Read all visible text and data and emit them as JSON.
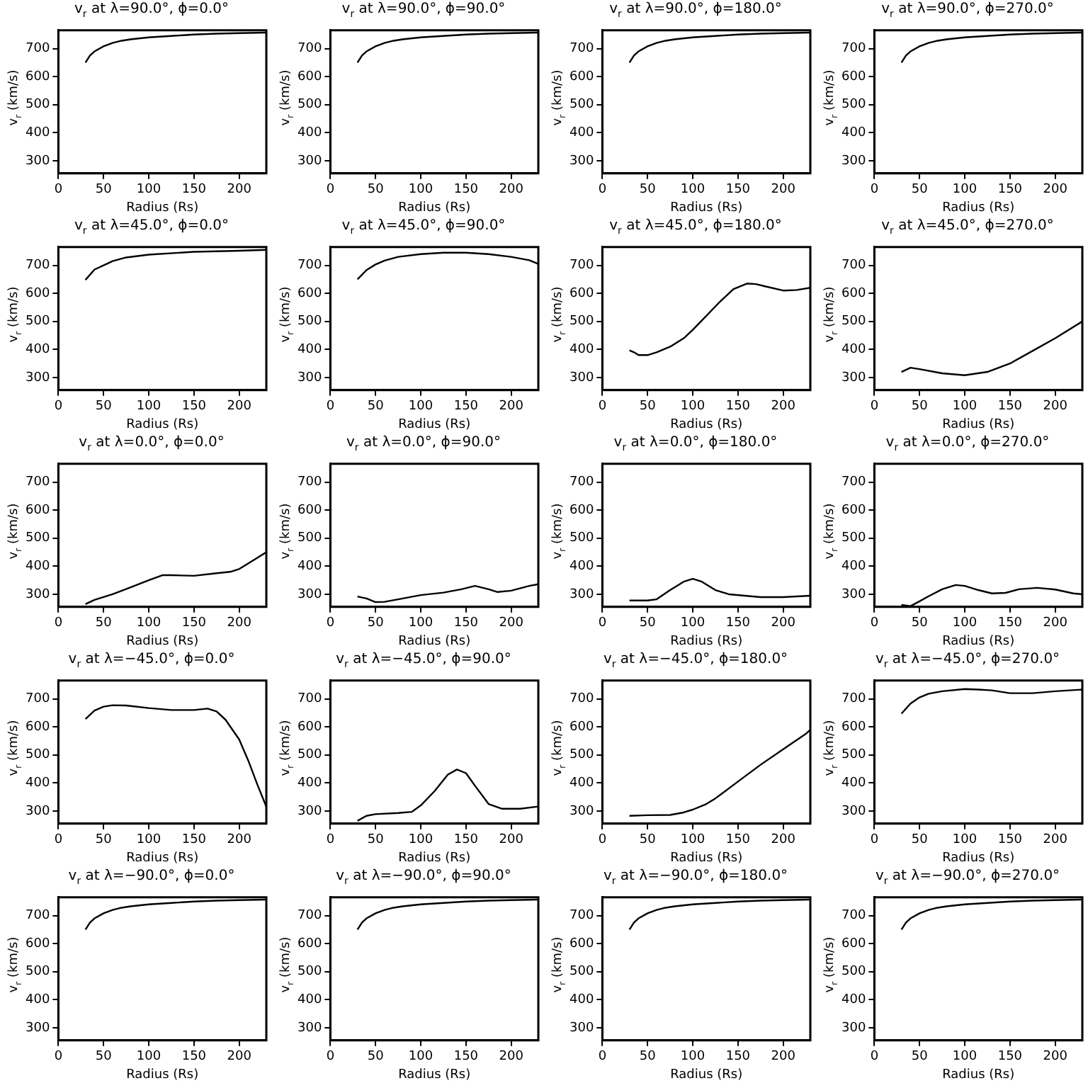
{
  "chart_data": [
    {
      "type": "line",
      "title": "v$_{r}$ at λ=90.0°, ϕ=0.0°",
      "xlabel": "Radius (Rs)",
      "ylabel": "v$_{r}$ (km/s)",
      "x": [
        30,
        35,
        40,
        50,
        60,
        70,
        80,
        100,
        125,
        150,
        175,
        200,
        230
      ],
      "values": [
        650,
        675,
        690,
        708,
        720,
        728,
        733,
        740,
        745,
        750,
        753,
        755,
        757
      ],
      "color": "#000000",
      "xlim": [
        0,
        230
      ],
      "ylim": [
        255,
        765
      ],
      "xticks": [
        0,
        50,
        100,
        150,
        200
      ],
      "yticks": [
        300,
        400,
        500,
        600,
        700
      ],
      "marker": "none",
      "line_style": "solid"
    },
    {
      "type": "line",
      "title": "v$_{r}$ at λ=90.0°, ϕ=90.0°",
      "xlabel": "Radius (Rs)",
      "ylabel": "v$_{r}$ (km/s)",
      "x": [
        30,
        35,
        40,
        50,
        60,
        70,
        80,
        100,
        125,
        150,
        175,
        200,
        230
      ],
      "values": [
        650,
        675,
        690,
        708,
        720,
        728,
        733,
        740,
        745,
        750,
        753,
        755,
        757
      ],
      "color": "#000000",
      "xlim": [
        0,
        230
      ],
      "ylim": [
        255,
        765
      ],
      "xticks": [
        0,
        50,
        100,
        150,
        200
      ],
      "yticks": [
        300,
        400,
        500,
        600,
        700
      ],
      "marker": "none",
      "line_style": "solid"
    },
    {
      "type": "line",
      "title": "v$_{r}$ at λ=90.0°, ϕ=180.0°",
      "xlabel": "Radius (Rs)",
      "ylabel": "v$_{r}$ (km/s)",
      "x": [
        30,
        35,
        40,
        50,
        60,
        70,
        80,
        100,
        125,
        150,
        175,
        200,
        230
      ],
      "values": [
        650,
        675,
        690,
        708,
        720,
        728,
        733,
        740,
        745,
        750,
        753,
        755,
        757
      ],
      "color": "#000000",
      "xlim": [
        0,
        230
      ],
      "ylim": [
        255,
        765
      ],
      "xticks": [
        0,
        50,
        100,
        150,
        200
      ],
      "yticks": [
        300,
        400,
        500,
        600,
        700
      ],
      "marker": "none",
      "line_style": "solid"
    },
    {
      "type": "line",
      "title": "v$_{r}$ at λ=90.0°, ϕ=270.0°",
      "xlabel": "Radius (Rs)",
      "ylabel": "v$_{r}$ (km/s)",
      "x": [
        30,
        35,
        40,
        50,
        60,
        70,
        80,
        100,
        125,
        150,
        175,
        200,
        230
      ],
      "values": [
        650,
        675,
        690,
        708,
        720,
        728,
        733,
        740,
        745,
        750,
        753,
        755,
        757
      ],
      "color": "#000000",
      "xlim": [
        0,
        230
      ],
      "ylim": [
        255,
        765
      ],
      "xticks": [
        0,
        50,
        100,
        150,
        200
      ],
      "yticks": [
        300,
        400,
        500,
        600,
        700
      ],
      "marker": "none",
      "line_style": "solid"
    },
    {
      "type": "line",
      "title": "v$_{r}$ at λ=45.0°, ϕ=0.0°",
      "xlabel": "Radius (Rs)",
      "ylabel": "v$_{r}$ (km/s)",
      "x": [
        30,
        40,
        50,
        60,
        75,
        100,
        150,
        200,
        230
      ],
      "values": [
        648,
        685,
        700,
        715,
        728,
        738,
        748,
        752,
        755
      ],
      "color": "#000000",
      "xlim": [
        0,
        230
      ],
      "ylim": [
        255,
        765
      ],
      "xticks": [
        0,
        50,
        100,
        150,
        200
      ],
      "yticks": [
        300,
        400,
        500,
        600,
        700
      ],
      "marker": "none",
      "line_style": "solid"
    },
    {
      "type": "line",
      "title": "v$_{r}$ at λ=45.0°, ϕ=90.0°",
      "xlabel": "Radius (Rs)",
      "ylabel": "v$_{r}$ (km/s)",
      "x": [
        30,
        40,
        50,
        60,
        75,
        100,
        125,
        150,
        175,
        200,
        220,
        230
      ],
      "values": [
        650,
        683,
        703,
        717,
        730,
        740,
        745,
        745,
        740,
        730,
        718,
        705
      ],
      "color": "#000000",
      "xlim": [
        0,
        230
      ],
      "ylim": [
        255,
        765
      ],
      "xticks": [
        0,
        50,
        100,
        150,
        200
      ],
      "yticks": [
        300,
        400,
        500,
        600,
        700
      ],
      "marker": "none",
      "line_style": "solid"
    },
    {
      "type": "line",
      "title": "v$_{r}$ at λ=45.0°, ϕ=180.0°",
      "xlabel": "Radius (Rs)",
      "ylabel": "v$_{r}$ (km/s)",
      "x": [
        30,
        35,
        40,
        50,
        60,
        75,
        90,
        100,
        115,
        130,
        145,
        160,
        170,
        180,
        200,
        215,
        230
      ],
      "values": [
        397,
        390,
        380,
        380,
        390,
        410,
        440,
        470,
        520,
        570,
        615,
        635,
        633,
        625,
        610,
        612,
        620
      ],
      "color": "#000000",
      "xlim": [
        0,
        230
      ],
      "ylim": [
        255,
        765
      ],
      "xticks": [
        0,
        50,
        100,
        150,
        200
      ],
      "yticks": [
        300,
        400,
        500,
        600,
        700
      ],
      "marker": "none",
      "line_style": "solid"
    },
    {
      "type": "line",
      "title": "v$_{r}$ at λ=45.0°, ϕ=270.0°",
      "xlabel": "Radius (Rs)",
      "ylabel": "v$_{r}$ (km/s)",
      "x": [
        30,
        40,
        50,
        75,
        100,
        125,
        150,
        175,
        200,
        230
      ],
      "values": [
        320,
        335,
        330,
        315,
        308,
        320,
        350,
        395,
        440,
        500
      ],
      "color": "#000000",
      "xlim": [
        0,
        230
      ],
      "ylim": [
        255,
        765
      ],
      "xticks": [
        0,
        50,
        100,
        150,
        200
      ],
      "yticks": [
        300,
        400,
        500,
        600,
        700
      ],
      "marker": "none",
      "line_style": "solid"
    },
    {
      "type": "line",
      "title": "v$_{r}$ at λ=0.0°, ϕ=0.0°",
      "xlabel": "Radius (Rs)",
      "ylabel": "v$_{r}$ (km/s)",
      "x": [
        30,
        40,
        60,
        80,
        100,
        115,
        125,
        150,
        175,
        190,
        200,
        215,
        230
      ],
      "values": [
        265,
        280,
        300,
        325,
        350,
        368,
        368,
        366,
        375,
        380,
        390,
        420,
        450
      ],
      "color": "#000000",
      "xlim": [
        0,
        230
      ],
      "ylim": [
        255,
        765
      ],
      "xticks": [
        0,
        50,
        100,
        150,
        200
      ],
      "yticks": [
        300,
        400,
        500,
        600,
        700
      ],
      "marker": "none",
      "line_style": "solid"
    },
    {
      "type": "line",
      "title": "v$_{r}$ at λ=0.0°, ϕ=90.0°",
      "xlabel": "Radius (Rs)",
      "ylabel": "v$_{r}$ (km/s)",
      "x": [
        30,
        40,
        50,
        60,
        75,
        100,
        125,
        145,
        160,
        175,
        185,
        200,
        220,
        230
      ],
      "values": [
        292,
        285,
        272,
        273,
        282,
        297,
        306,
        318,
        330,
        318,
        308,
        313,
        330,
        336
      ],
      "color": "#000000",
      "xlim": [
        0,
        230
      ],
      "ylim": [
        255,
        765
      ],
      "xticks": [
        0,
        50,
        100,
        150,
        200
      ],
      "yticks": [
        300,
        400,
        500,
        600,
        700
      ],
      "marker": "none",
      "line_style": "solid"
    },
    {
      "type": "line",
      "title": "v$_{r}$ at λ=0.0°, ϕ=180.0°",
      "xlabel": "Radius (Rs)",
      "ylabel": "v$_{r}$ (km/s)",
      "x": [
        30,
        50,
        60,
        75,
        90,
        100,
        110,
        125,
        140,
        175,
        200,
        230
      ],
      "values": [
        278,
        278,
        282,
        315,
        345,
        355,
        345,
        315,
        300,
        290,
        290,
        295
      ],
      "color": "#000000",
      "xlim": [
        0,
        230
      ],
      "ylim": [
        255,
        765
      ],
      "xticks": [
        0,
        50,
        100,
        150,
        200
      ],
      "yticks": [
        300,
        400,
        500,
        600,
        700
      ],
      "marker": "none",
      "line_style": "solid"
    },
    {
      "type": "line",
      "title": "v$_{r}$ at λ=0.0°, ϕ=270.0°",
      "xlabel": "Radius (Rs)",
      "ylabel": "v$_{r}$ (km/s)",
      "x": [
        30,
        40,
        50,
        60,
        75,
        90,
        100,
        115,
        130,
        145,
        160,
        180,
        200,
        220,
        230
      ],
      "values": [
        262,
        258,
        275,
        293,
        318,
        333,
        330,
        315,
        303,
        305,
        318,
        323,
        317,
        303,
        300
      ],
      "color": "#000000",
      "xlim": [
        0,
        230
      ],
      "ylim": [
        255,
        765
      ],
      "xticks": [
        0,
        50,
        100,
        150,
        200
      ],
      "yticks": [
        300,
        400,
        500,
        600,
        700
      ],
      "marker": "none",
      "line_style": "solid"
    },
    {
      "type": "line",
      "title": "v$_{r}$ at λ=−45.0°, ϕ=0.0°",
      "xlabel": "Radius (Rs)",
      "ylabel": "v$_{r}$ (km/s)",
      "x": [
        30,
        40,
        50,
        60,
        75,
        100,
        125,
        150,
        165,
        175,
        185,
        200,
        210,
        220,
        230
      ],
      "values": [
        628,
        658,
        672,
        677,
        676,
        667,
        660,
        660,
        665,
        655,
        625,
        555,
        480,
        395,
        315
      ],
      "color": "#000000",
      "xlim": [
        0,
        230
      ],
      "ylim": [
        255,
        765
      ],
      "xticks": [
        0,
        50,
        100,
        150,
        200
      ],
      "yticks": [
        300,
        400,
        500,
        600,
        700
      ],
      "marker": "none",
      "line_style": "solid"
    },
    {
      "type": "line",
      "title": "v$_{r}$ at λ=−45.0°, ϕ=90.0°",
      "xlabel": "Radius (Rs)",
      "ylabel": "v$_{r}$ (km/s)",
      "x": [
        30,
        40,
        50,
        75,
        90,
        100,
        115,
        130,
        140,
        150,
        160,
        175,
        190,
        210,
        230
      ],
      "values": [
        265,
        283,
        289,
        293,
        297,
        320,
        370,
        430,
        448,
        435,
        390,
        325,
        308,
        308,
        316
      ],
      "color": "#000000",
      "xlim": [
        0,
        230
      ],
      "ylim": [
        255,
        765
      ],
      "xticks": [
        0,
        50,
        100,
        150,
        200
      ],
      "yticks": [
        300,
        400,
        500,
        600,
        700
      ],
      "marker": "none",
      "line_style": "solid"
    },
    {
      "type": "line",
      "title": "v$_{r}$ at λ=−45.0°, ϕ=180.0°",
      "xlabel": "Radius (Rs)",
      "ylabel": "v$_{r}$ (km/s)",
      "x": [
        30,
        50,
        75,
        90,
        100,
        115,
        125,
        150,
        175,
        200,
        225,
        230
      ],
      "values": [
        283,
        285,
        286,
        295,
        305,
        325,
        345,
        405,
        465,
        520,
        575,
        590
      ],
      "color": "#000000",
      "xlim": [
        0,
        230
      ],
      "ylim": [
        255,
        765
      ],
      "xticks": [
        0,
        50,
        100,
        150,
        200
      ],
      "yticks": [
        300,
        400,
        500,
        600,
        700
      ],
      "marker": "none",
      "line_style": "solid"
    },
    {
      "type": "line",
      "title": "v$_{r}$ at λ=−45.0°, ϕ=270.0°",
      "xlabel": "Radius (Rs)",
      "ylabel": "v$_{r}$ (km/s)",
      "x": [
        30,
        40,
        50,
        60,
        75,
        100,
        115,
        130,
        150,
        175,
        200,
        230
      ],
      "values": [
        647,
        683,
        705,
        718,
        727,
        735,
        733,
        730,
        720,
        720,
        727,
        733
      ],
      "color": "#000000",
      "xlim": [
        0,
        230
      ],
      "ylim": [
        255,
        765
      ],
      "xticks": [
        0,
        50,
        100,
        150,
        200
      ],
      "yticks": [
        300,
        400,
        500,
        600,
        700
      ],
      "marker": "none",
      "line_style": "solid"
    },
    {
      "type": "line",
      "title": "v$_{r}$ at λ=−90.0°, ϕ=0.0°",
      "xlabel": "Radius (Rs)",
      "ylabel": "v$_{r}$ (km/s)",
      "x": [
        30,
        35,
        40,
        50,
        60,
        70,
        80,
        100,
        125,
        150,
        175,
        200,
        230
      ],
      "values": [
        650,
        675,
        690,
        708,
        720,
        728,
        733,
        740,
        745,
        750,
        753,
        755,
        757
      ],
      "color": "#000000",
      "xlim": [
        0,
        230
      ],
      "ylim": [
        255,
        765
      ],
      "xticks": [
        0,
        50,
        100,
        150,
        200
      ],
      "yticks": [
        300,
        400,
        500,
        600,
        700
      ],
      "marker": "none",
      "line_style": "solid"
    },
    {
      "type": "line",
      "title": "v$_{r}$ at λ=−90.0°, ϕ=90.0°",
      "xlabel": "Radius (Rs)",
      "ylabel": "v$_{r}$ (km/s)",
      "x": [
        30,
        35,
        40,
        50,
        60,
        70,
        80,
        100,
        125,
        150,
        175,
        200,
        230
      ],
      "values": [
        650,
        675,
        690,
        708,
        720,
        728,
        733,
        740,
        745,
        750,
        753,
        755,
        757
      ],
      "color": "#000000",
      "xlim": [
        0,
        230
      ],
      "ylim": [
        255,
        765
      ],
      "xticks": [
        0,
        50,
        100,
        150,
        200
      ],
      "yticks": [
        300,
        400,
        500,
        600,
        700
      ],
      "marker": "none",
      "line_style": "solid"
    },
    {
      "type": "line",
      "title": "v$_{r}$ at λ=−90.0°, ϕ=180.0°",
      "xlabel": "Radius (Rs)",
      "ylabel": "v$_{r}$ (km/s)",
      "x": [
        30,
        35,
        40,
        50,
        60,
        70,
        80,
        100,
        125,
        150,
        175,
        200,
        230
      ],
      "values": [
        650,
        675,
        690,
        708,
        720,
        728,
        733,
        740,
        745,
        750,
        753,
        755,
        757
      ],
      "color": "#000000",
      "xlim": [
        0,
        230
      ],
      "ylim": [
        255,
        765
      ],
      "xticks": [
        0,
        50,
        100,
        150,
        200
      ],
      "yticks": [
        300,
        400,
        500,
        600,
        700
      ],
      "marker": "none",
      "line_style": "solid"
    },
    {
      "type": "line",
      "title": "v$_{r}$ at λ=−90.0°, ϕ=270.0°",
      "xlabel": "Radius (Rs)",
      "ylabel": "v$_{r}$ (km/s)",
      "x": [
        30,
        35,
        40,
        50,
        60,
        70,
        80,
        100,
        125,
        150,
        175,
        200,
        230
      ],
      "values": [
        650,
        675,
        690,
        708,
        720,
        728,
        733,
        740,
        745,
        750,
        753,
        755,
        757
      ],
      "color": "#000000",
      "xlim": [
        0,
        230
      ],
      "ylim": [
        255,
        765
      ],
      "xticks": [
        0,
        50,
        100,
        150,
        200
      ],
      "yticks": [
        300,
        400,
        500,
        600,
        700
      ],
      "marker": "none",
      "line_style": "solid"
    }
  ]
}
